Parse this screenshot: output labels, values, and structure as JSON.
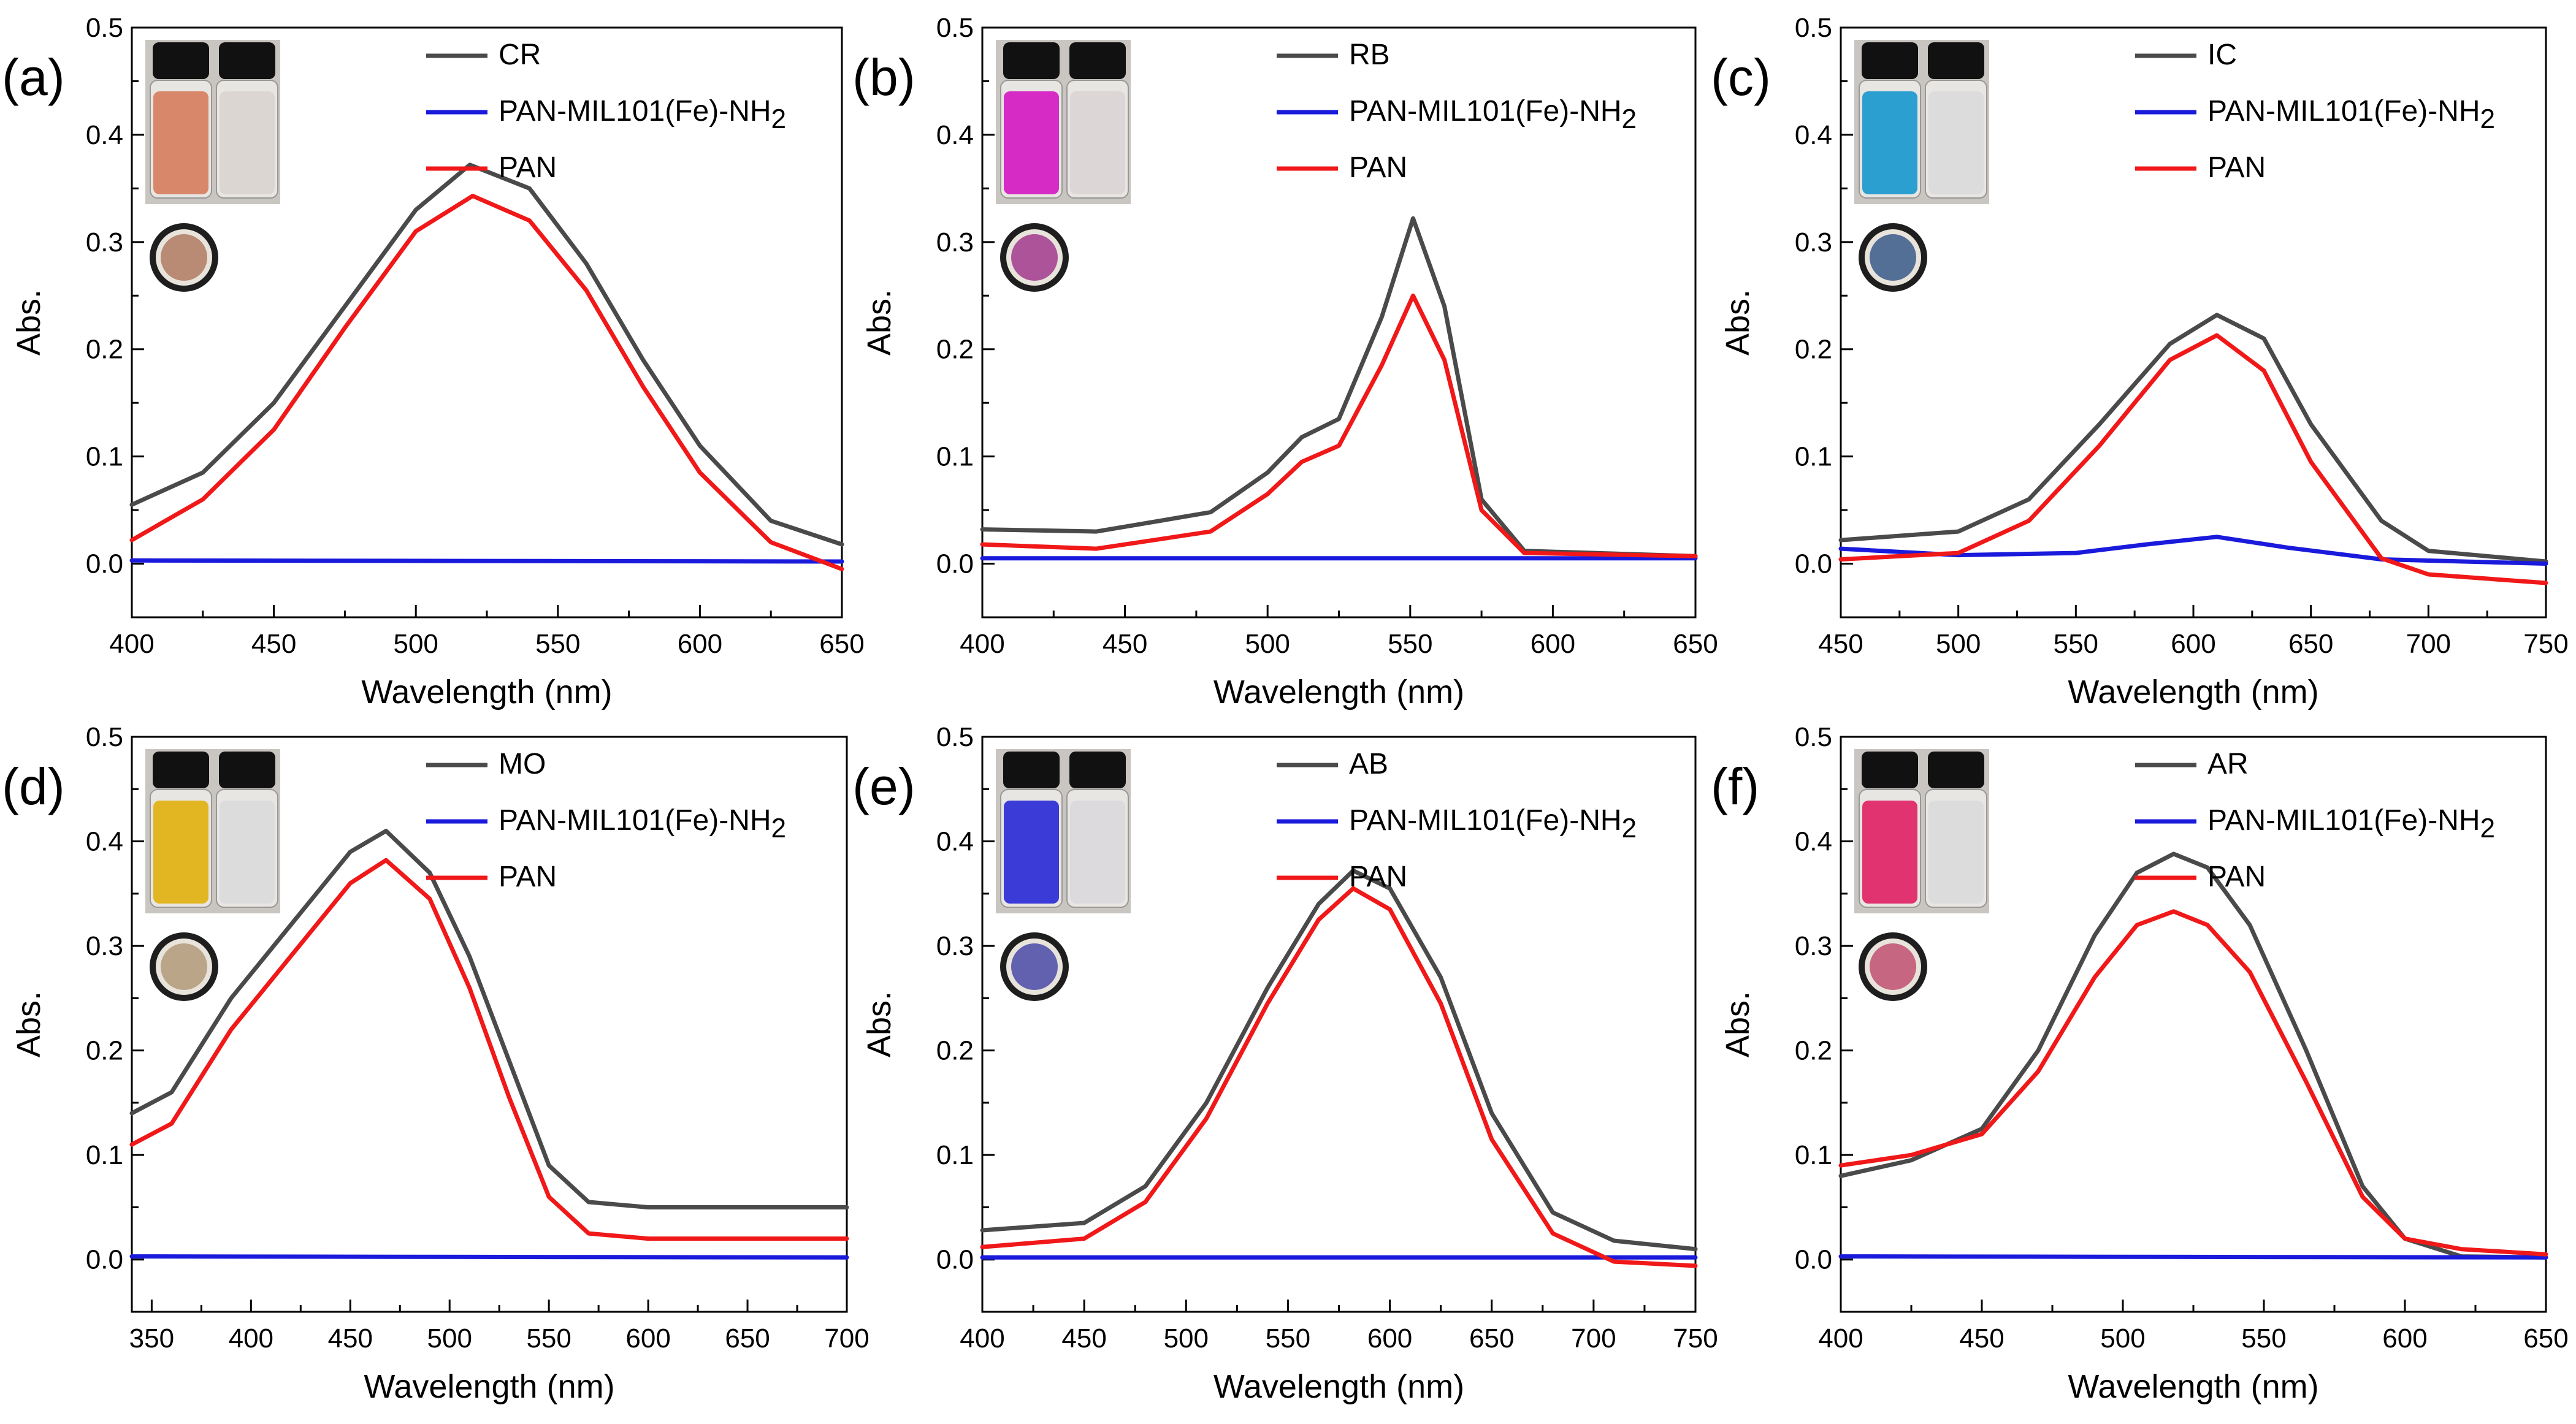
{
  "figure": {
    "xlabel": "Wavelength (nm)",
    "ylabel": "Abs.",
    "colors": {
      "dye": "#4a4a4a",
      "mof": "#1a1adc",
      "pan": "#f01818",
      "axis": "#000000"
    }
  },
  "chart_data": [
    {
      "panel": "(a)",
      "type": "line",
      "xlim": [
        400,
        650
      ],
      "xticks": [
        400,
        450,
        500,
        550,
        600,
        650
      ],
      "ylim": [
        -0.05,
        0.5
      ],
      "yticks": [
        0.0,
        0.1,
        0.2,
        0.3,
        0.4,
        0.5
      ],
      "xlabel": "Wavelength (nm)",
      "ylabel": "Abs.",
      "legend": [
        "CR",
        "PAN-MIL101(Fe)-NH2",
        "PAN"
      ],
      "vial_colors": [
        "#d9876a",
        "#dcd6d2"
      ],
      "membrane_color": "#b07a62",
      "series": [
        {
          "name": "CR",
          "color": "#4a4a4a",
          "x": [
            400,
            425,
            450,
            475,
            500,
            519,
            540,
            560,
            580,
            600,
            625,
            650
          ],
          "y": [
            0.055,
            0.085,
            0.15,
            0.24,
            0.33,
            0.372,
            0.35,
            0.28,
            0.19,
            0.11,
            0.04,
            0.018
          ]
        },
        {
          "name": "PAN-MIL101(Fe)-NH2",
          "color": "#1a1adc",
          "x": [
            400,
            650
          ],
          "y": [
            0.003,
            0.002
          ]
        },
        {
          "name": "PAN",
          "color": "#f01818",
          "x": [
            400,
            425,
            450,
            475,
            500,
            520,
            540,
            560,
            580,
            600,
            625,
            650
          ],
          "y": [
            0.022,
            0.06,
            0.125,
            0.22,
            0.31,
            0.343,
            0.32,
            0.255,
            0.165,
            0.085,
            0.02,
            -0.005
          ]
        }
      ]
    },
    {
      "panel": "(b)",
      "type": "line",
      "xlim": [
        400,
        650
      ],
      "xticks": [
        400,
        450,
        500,
        550,
        600,
        650
      ],
      "ylim": [
        -0.05,
        0.5
      ],
      "yticks": [
        0.0,
        0.1,
        0.2,
        0.3,
        0.4,
        0.5
      ],
      "xlabel": "Wavelength (nm)",
      "ylabel": "Abs.",
      "legend": [
        "RB",
        "PAN-MIL101(Fe)-NH2",
        "PAN"
      ],
      "vial_colors": [
        "#d62bc4",
        "#dcd6d6"
      ],
      "membrane_color": "#a23a8e",
      "series": [
        {
          "name": "RB",
          "color": "#4a4a4a",
          "x": [
            400,
            440,
            480,
            500,
            512,
            525,
            540,
            551,
            562,
            575,
            590,
            650
          ],
          "y": [
            0.032,
            0.03,
            0.048,
            0.085,
            0.118,
            0.135,
            0.23,
            0.322,
            0.24,
            0.06,
            0.012,
            0.007
          ]
        },
        {
          "name": "PAN-MIL101(Fe)-NH2",
          "color": "#1a1adc",
          "x": [
            400,
            650
          ],
          "y": [
            0.005,
            0.005
          ]
        },
        {
          "name": "PAN",
          "color": "#f01818",
          "x": [
            400,
            440,
            480,
            500,
            512,
            525,
            540,
            551,
            562,
            575,
            590,
            650
          ],
          "y": [
            0.018,
            0.014,
            0.03,
            0.065,
            0.095,
            0.11,
            0.185,
            0.25,
            0.19,
            0.05,
            0.01,
            0.007
          ]
        }
      ]
    },
    {
      "panel": "(c)",
      "type": "line",
      "xlim": [
        450,
        750
      ],
      "xticks": [
        450,
        500,
        550,
        600,
        650,
        700,
        750
      ],
      "ylim": [
        -0.05,
        0.5
      ],
      "yticks": [
        0.0,
        0.1,
        0.2,
        0.3,
        0.4,
        0.5
      ],
      "xlabel": "Wavelength (nm)",
      "ylabel": "Abs.",
      "legend": [
        "IC",
        "PAN-MIL101(Fe)-NH2",
        "PAN"
      ],
      "vial_colors": [
        "#2a9fd0",
        "#dddcdc"
      ],
      "membrane_color": "#3a5a8a",
      "series": [
        {
          "name": "IC",
          "color": "#4a4a4a",
          "x": [
            450,
            500,
            530,
            560,
            590,
            610,
            630,
            650,
            680,
            700,
            750
          ],
          "y": [
            0.022,
            0.03,
            0.06,
            0.13,
            0.205,
            0.232,
            0.21,
            0.13,
            0.04,
            0.012,
            0.002
          ]
        },
        {
          "name": "PAN-MIL101(Fe)-NH2",
          "color": "#1a1adc",
          "x": [
            450,
            500,
            550,
            580,
            610,
            640,
            680,
            750
          ],
          "y": [
            0.014,
            0.008,
            0.01,
            0.018,
            0.025,
            0.015,
            0.004,
            0.0
          ]
        },
        {
          "name": "PAN",
          "color": "#f01818",
          "x": [
            450,
            500,
            530,
            560,
            590,
            610,
            630,
            650,
            680,
            700,
            750
          ],
          "y": [
            0.004,
            0.01,
            0.04,
            0.11,
            0.19,
            0.213,
            0.18,
            0.095,
            0.005,
            -0.01,
            -0.018
          ]
        }
      ]
    },
    {
      "panel": "(d)",
      "type": "line",
      "xlim": [
        340,
        700
      ],
      "xticks": [
        350,
        400,
        450,
        500,
        550,
        600,
        650,
        700
      ],
      "ylim": [
        -0.05,
        0.5
      ],
      "yticks": [
        0.0,
        0.1,
        0.2,
        0.3,
        0.4,
        0.5
      ],
      "xlabel": "Wavelength (nm)",
      "ylabel": "Abs.",
      "legend": [
        "MO",
        "PAN-MIL101(Fe)-NH2",
        "PAN"
      ],
      "vial_colors": [
        "#e2b623",
        "#dddcdc"
      ],
      "membrane_color": "#b39a7a",
      "series": [
        {
          "name": "MO",
          "color": "#4a4a4a",
          "x": [
            340,
            360,
            390,
            420,
            450,
            468,
            490,
            510,
            530,
            550,
            570,
            600,
            700
          ],
          "y": [
            0.14,
            0.16,
            0.25,
            0.32,
            0.39,
            0.41,
            0.37,
            0.29,
            0.19,
            0.09,
            0.055,
            0.05,
            0.05
          ]
        },
        {
          "name": "PAN-MIL101(Fe)-NH2",
          "color": "#1a1adc",
          "x": [
            340,
            700
          ],
          "y": [
            0.003,
            0.002
          ]
        },
        {
          "name": "PAN",
          "color": "#f01818",
          "x": [
            340,
            360,
            390,
            420,
            450,
            468,
            490,
            510,
            530,
            550,
            570,
            600,
            700
          ],
          "y": [
            0.11,
            0.13,
            0.22,
            0.29,
            0.36,
            0.382,
            0.345,
            0.26,
            0.155,
            0.06,
            0.025,
            0.02,
            0.02
          ]
        }
      ]
    },
    {
      "panel": "(e)",
      "type": "line",
      "xlim": [
        400,
        750
      ],
      "xticks": [
        400,
        450,
        500,
        550,
        600,
        650,
        700,
        750
      ],
      "ylim": [
        -0.05,
        0.5
      ],
      "yticks": [
        0.0,
        0.1,
        0.2,
        0.3,
        0.4,
        0.5
      ],
      "xlabel": "Wavelength (nm)",
      "ylabel": "Abs.",
      "legend": [
        "AB",
        "PAN-MIL101(Fe)-NH2",
        "PAN"
      ],
      "vial_colors": [
        "#3b3bd8",
        "#dcdadc"
      ],
      "membrane_color": "#4a4aa8",
      "series": [
        {
          "name": "AB",
          "color": "#4a4a4a",
          "x": [
            400,
            450,
            480,
            510,
            540,
            565,
            582,
            600,
            625,
            650,
            680,
            710,
            750
          ],
          "y": [
            0.028,
            0.035,
            0.07,
            0.15,
            0.26,
            0.34,
            0.372,
            0.355,
            0.27,
            0.14,
            0.045,
            0.018,
            0.01
          ]
        },
        {
          "name": "PAN-MIL101(Fe)-NH2",
          "color": "#1a1adc",
          "x": [
            400,
            750
          ],
          "y": [
            0.002,
            0.002
          ]
        },
        {
          "name": "PAN",
          "color": "#f01818",
          "x": [
            400,
            450,
            480,
            510,
            540,
            565,
            582,
            600,
            625,
            650,
            680,
            710,
            750
          ],
          "y": [
            0.012,
            0.02,
            0.055,
            0.135,
            0.245,
            0.325,
            0.355,
            0.335,
            0.245,
            0.115,
            0.025,
            -0.002,
            -0.006
          ]
        }
      ]
    },
    {
      "panel": "(f)",
      "type": "line",
      "xlim": [
        400,
        650
      ],
      "xticks": [
        400,
        450,
        500,
        550,
        600,
        650
      ],
      "ylim": [
        -0.05,
        0.5
      ],
      "yticks": [
        0.0,
        0.1,
        0.2,
        0.3,
        0.4,
        0.5
      ],
      "xlabel": "Wavelength (nm)",
      "ylabel": "Abs.",
      "legend": [
        "AR",
        "PAN-MIL101(Fe)-NH2",
        "PAN"
      ],
      "vial_colors": [
        "#e0336f",
        "#dddcdc"
      ],
      "membrane_color": "#c05070",
      "series": [
        {
          "name": "AR",
          "color": "#4a4a4a",
          "x": [
            400,
            425,
            450,
            470,
            490,
            505,
            518,
            530,
            545,
            565,
            585,
            600,
            620,
            650
          ],
          "y": [
            0.08,
            0.095,
            0.125,
            0.2,
            0.31,
            0.37,
            0.388,
            0.375,
            0.32,
            0.2,
            0.07,
            0.02,
            0.003,
            0.002
          ]
        },
        {
          "name": "PAN-MIL101(Fe)-NH2",
          "color": "#1a1adc",
          "x": [
            400,
            650
          ],
          "y": [
            0.003,
            0.002
          ]
        },
        {
          "name": "PAN",
          "color": "#f01818",
          "x": [
            400,
            425,
            450,
            470,
            490,
            505,
            518,
            530,
            545,
            565,
            585,
            600,
            620,
            650
          ],
          "y": [
            0.09,
            0.1,
            0.12,
            0.18,
            0.27,
            0.32,
            0.333,
            0.32,
            0.275,
            0.17,
            0.06,
            0.02,
            0.01,
            0.005
          ]
        }
      ]
    }
  ]
}
